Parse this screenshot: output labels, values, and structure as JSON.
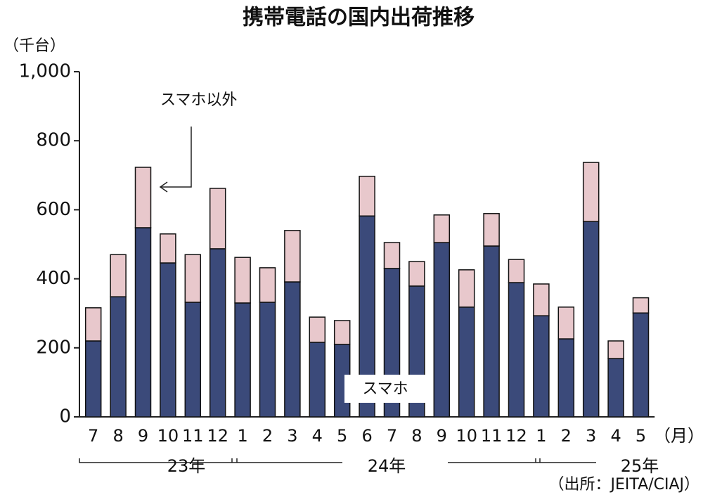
{
  "chart_data": {
    "type": "stacked_bar",
    "title": "携帯電話の国内出荷推移",
    "y_unit": "（千台）",
    "x_unit": "（月）",
    "source": "（出所：JEITA/CIAJ）",
    "categories": [
      "7",
      "8",
      "9",
      "10",
      "11",
      "12",
      "1",
      "2",
      "3",
      "4",
      "5",
      "6",
      "7",
      "8",
      "9",
      "10",
      "11",
      "12",
      "1",
      "2",
      "3",
      "4",
      "5"
    ],
    "year_labels": [
      "23年",
      "24年",
      "25年"
    ],
    "series": [
      {
        "name": "スマホ",
        "color": "#3b4a7a",
        "values": [
          220,
          348,
          548,
          446,
          332,
          487,
          330,
          332,
          391,
          216,
          210,
          582,
          430,
          379,
          505,
          318,
          495,
          389,
          293,
          226,
          566,
          169,
          301
        ]
      },
      {
        "name": "スマホ以外",
        "color": "#e8c8cc",
        "values": [
          96,
          122,
          175,
          84,
          138,
          175,
          132,
          100,
          149,
          73,
          69,
          115,
          75,
          71,
          80,
          108,
          94,
          67,
          92,
          92,
          171,
          51,
          44
        ]
      }
    ],
    "ylim": [
      0,
      1000
    ],
    "yticks": [
      0,
      200,
      400,
      600,
      800,
      {
        "value": 1000,
        "label": "1,000"
      }
    ]
  }
}
